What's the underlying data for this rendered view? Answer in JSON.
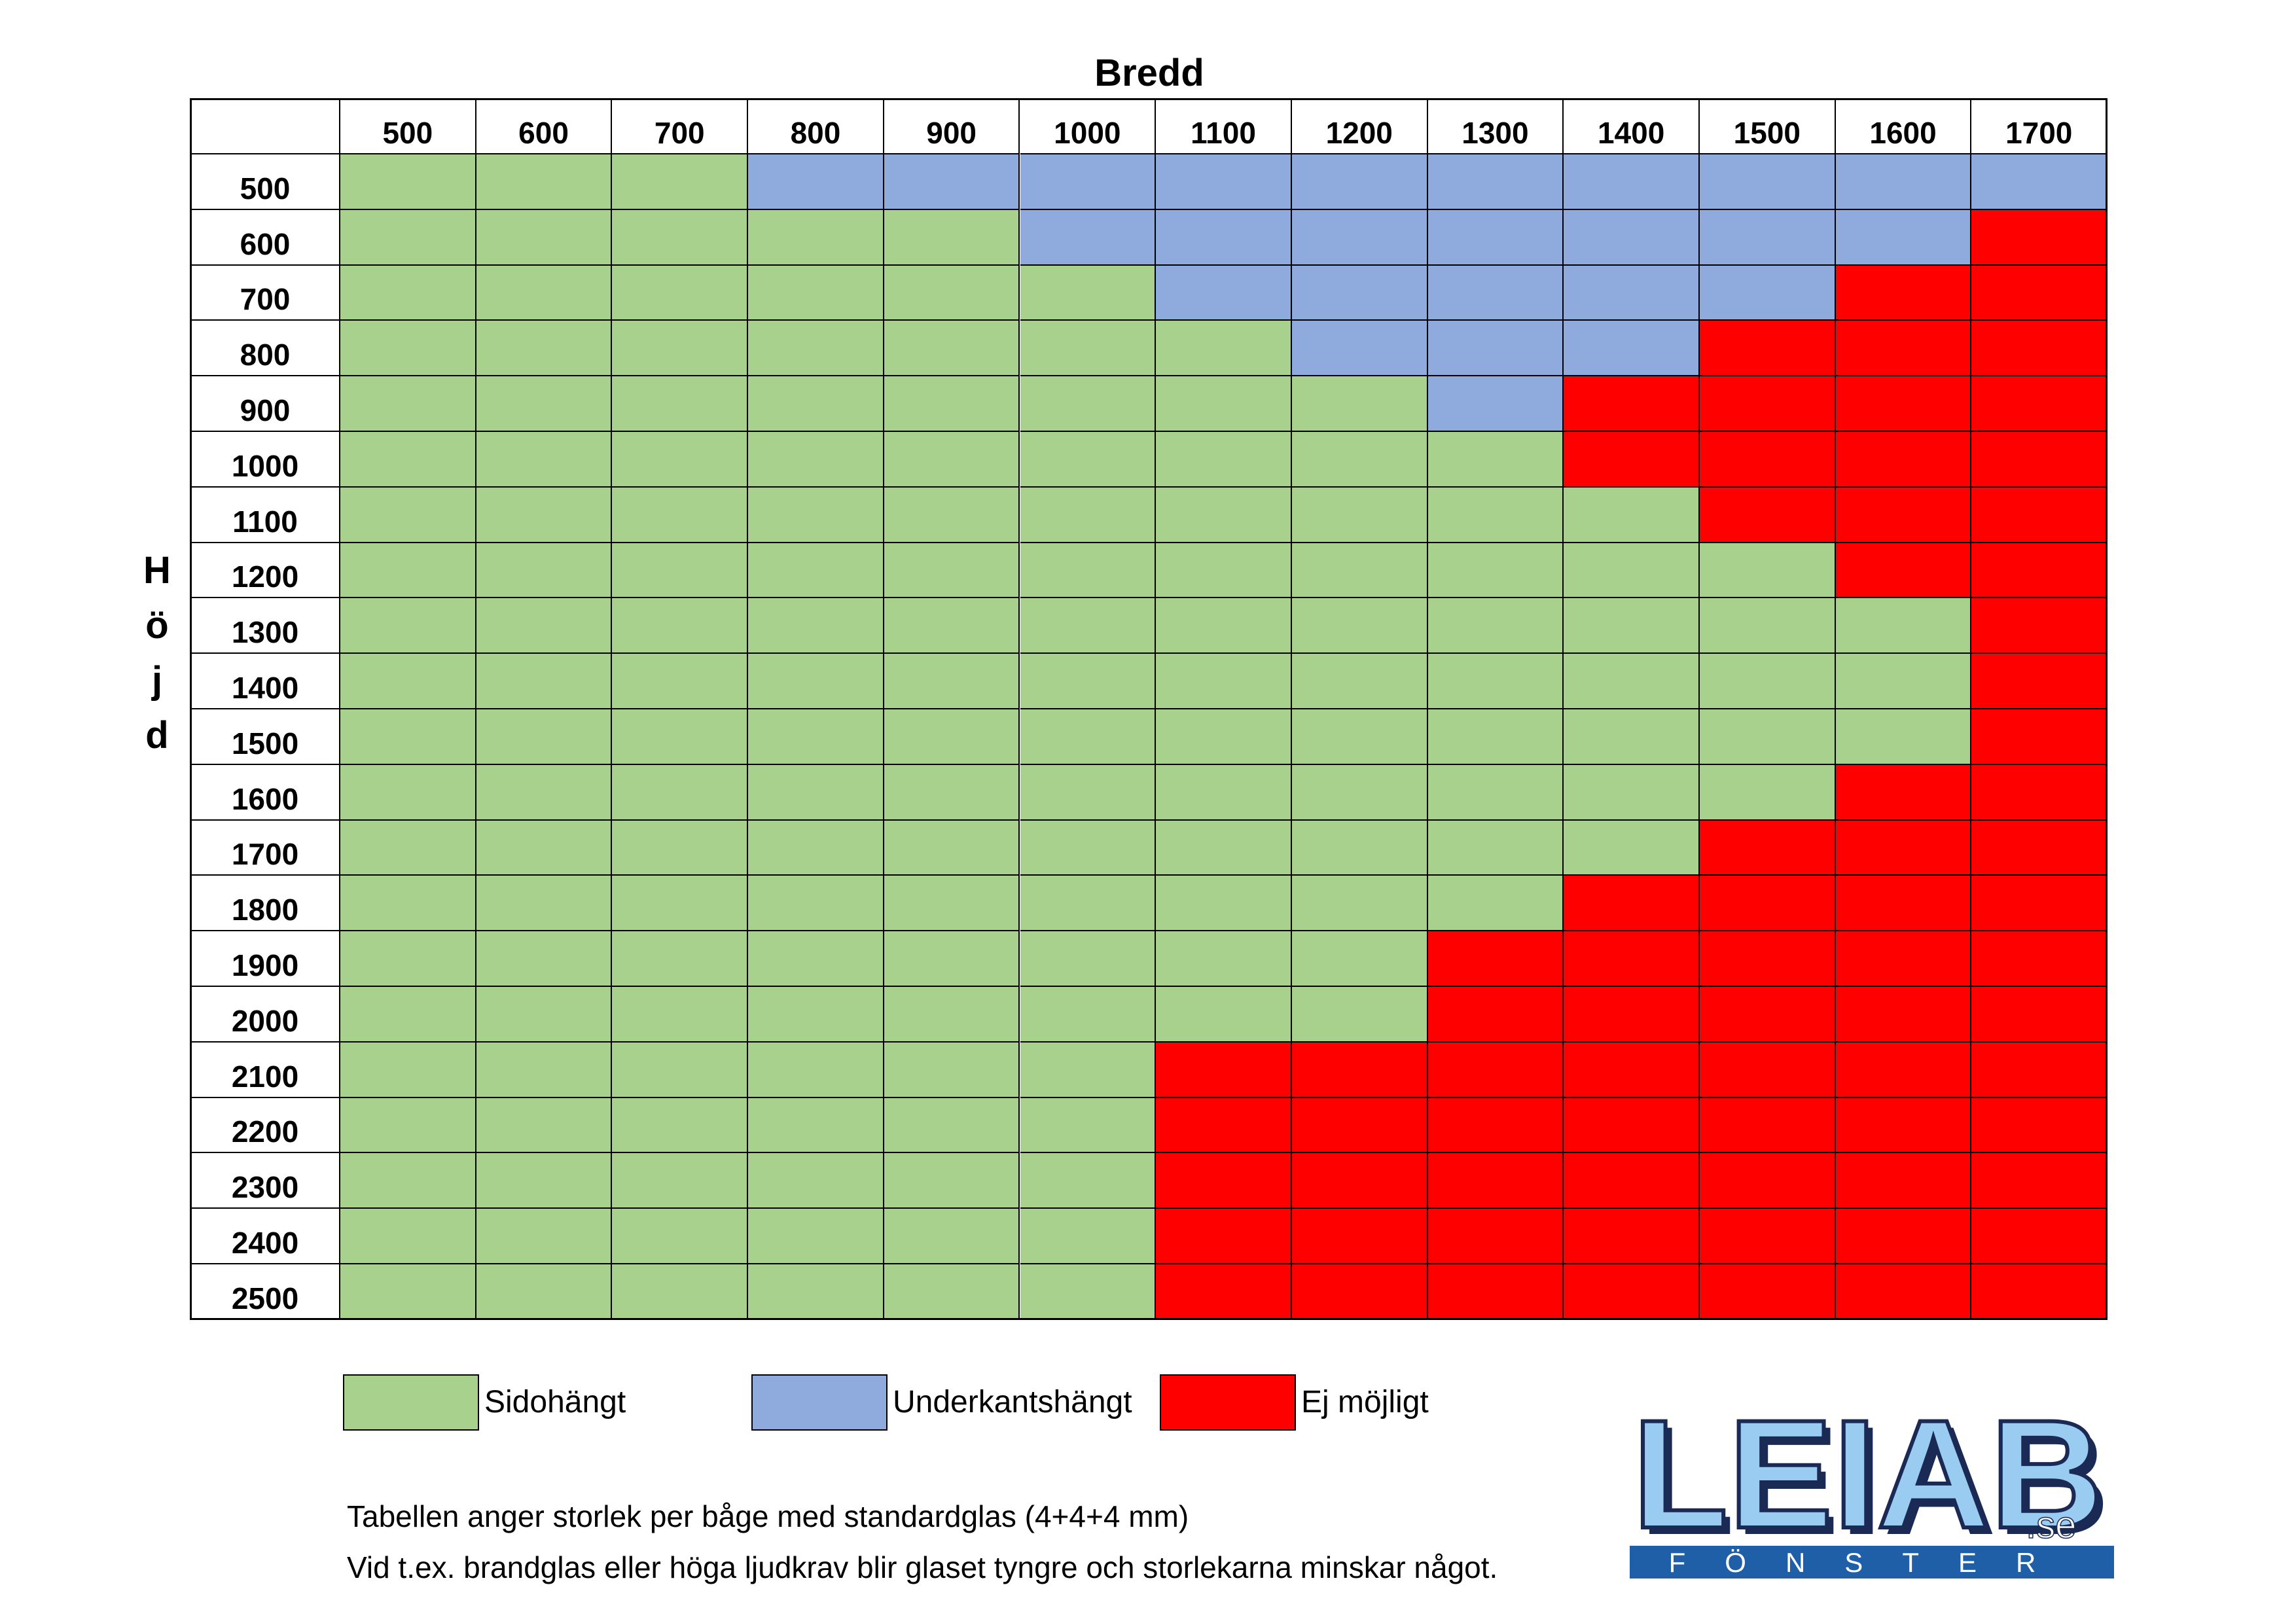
{
  "chart_data": {
    "type": "table",
    "xlabel": "Bredd",
    "ylabel": "Höjd",
    "widths": [
      500,
      600,
      700,
      800,
      900,
      1000,
      1100,
      1200,
      1300,
      1400,
      1500,
      1600,
      1700
    ],
    "heights": [
      500,
      600,
      700,
      800,
      900,
      1000,
      1100,
      1200,
      1300,
      1400,
      1500,
      1600,
      1700,
      1800,
      1900,
      2000,
      2100,
      2200,
      2300,
      2400,
      2500
    ],
    "categories": {
      "S": {
        "label": "Sidohängt",
        "color": "#a9d18e"
      },
      "U": {
        "label": "Underkantshängt",
        "color": "#8faadc"
      },
      "E": {
        "label": "Ej möjligt",
        "color": "#ff0000"
      }
    },
    "rows": [
      "SSSUUUUUUUUUU",
      "SSSSSUUUUUUUE",
      "SSSSSSUUUUUEE",
      "SSSSSSSUUUEEE",
      "SSSSSSSSUEEEE",
      "SSSSSSSSSEEEE",
      "SSSSSSSSSSEEE",
      "SSSSSSSSSSSEE",
      "SSSSSSSSSSSSE",
      "SSSSSSSSSSSSE",
      "SSSSSSSSSSSSE",
      "SSSSSSSSSSSEE",
      "SSSSSSSSSSEEE",
      "SSSSSSSSSEEEE",
      "SSSSSSSSEEEEE",
      "SSSSSSSSEEEEE",
      "SSSSSSEEEEEEE",
      "SSSSSSEEEEEEE",
      "SSSSSSEEEEEEE",
      "SSSSSSEEEEEEE",
      "SSSSSSEEEEEEE"
    ],
    "legend": [
      "S",
      "U",
      "E"
    ]
  },
  "notes": {
    "line1": "Tabellen anger storlek per båge med standardglas (4+4+4 mm)",
    "line2": "Vid t.ex. brandglas eller höga ljudkrav blir glaset tyngre och storlekarna minskar något."
  },
  "logo": {
    "name": "LEIAB",
    "suffix": ".se",
    "tagline": "FÖNSTER",
    "color": "#99ccf0",
    "band_color": "#1f5fa8"
  }
}
